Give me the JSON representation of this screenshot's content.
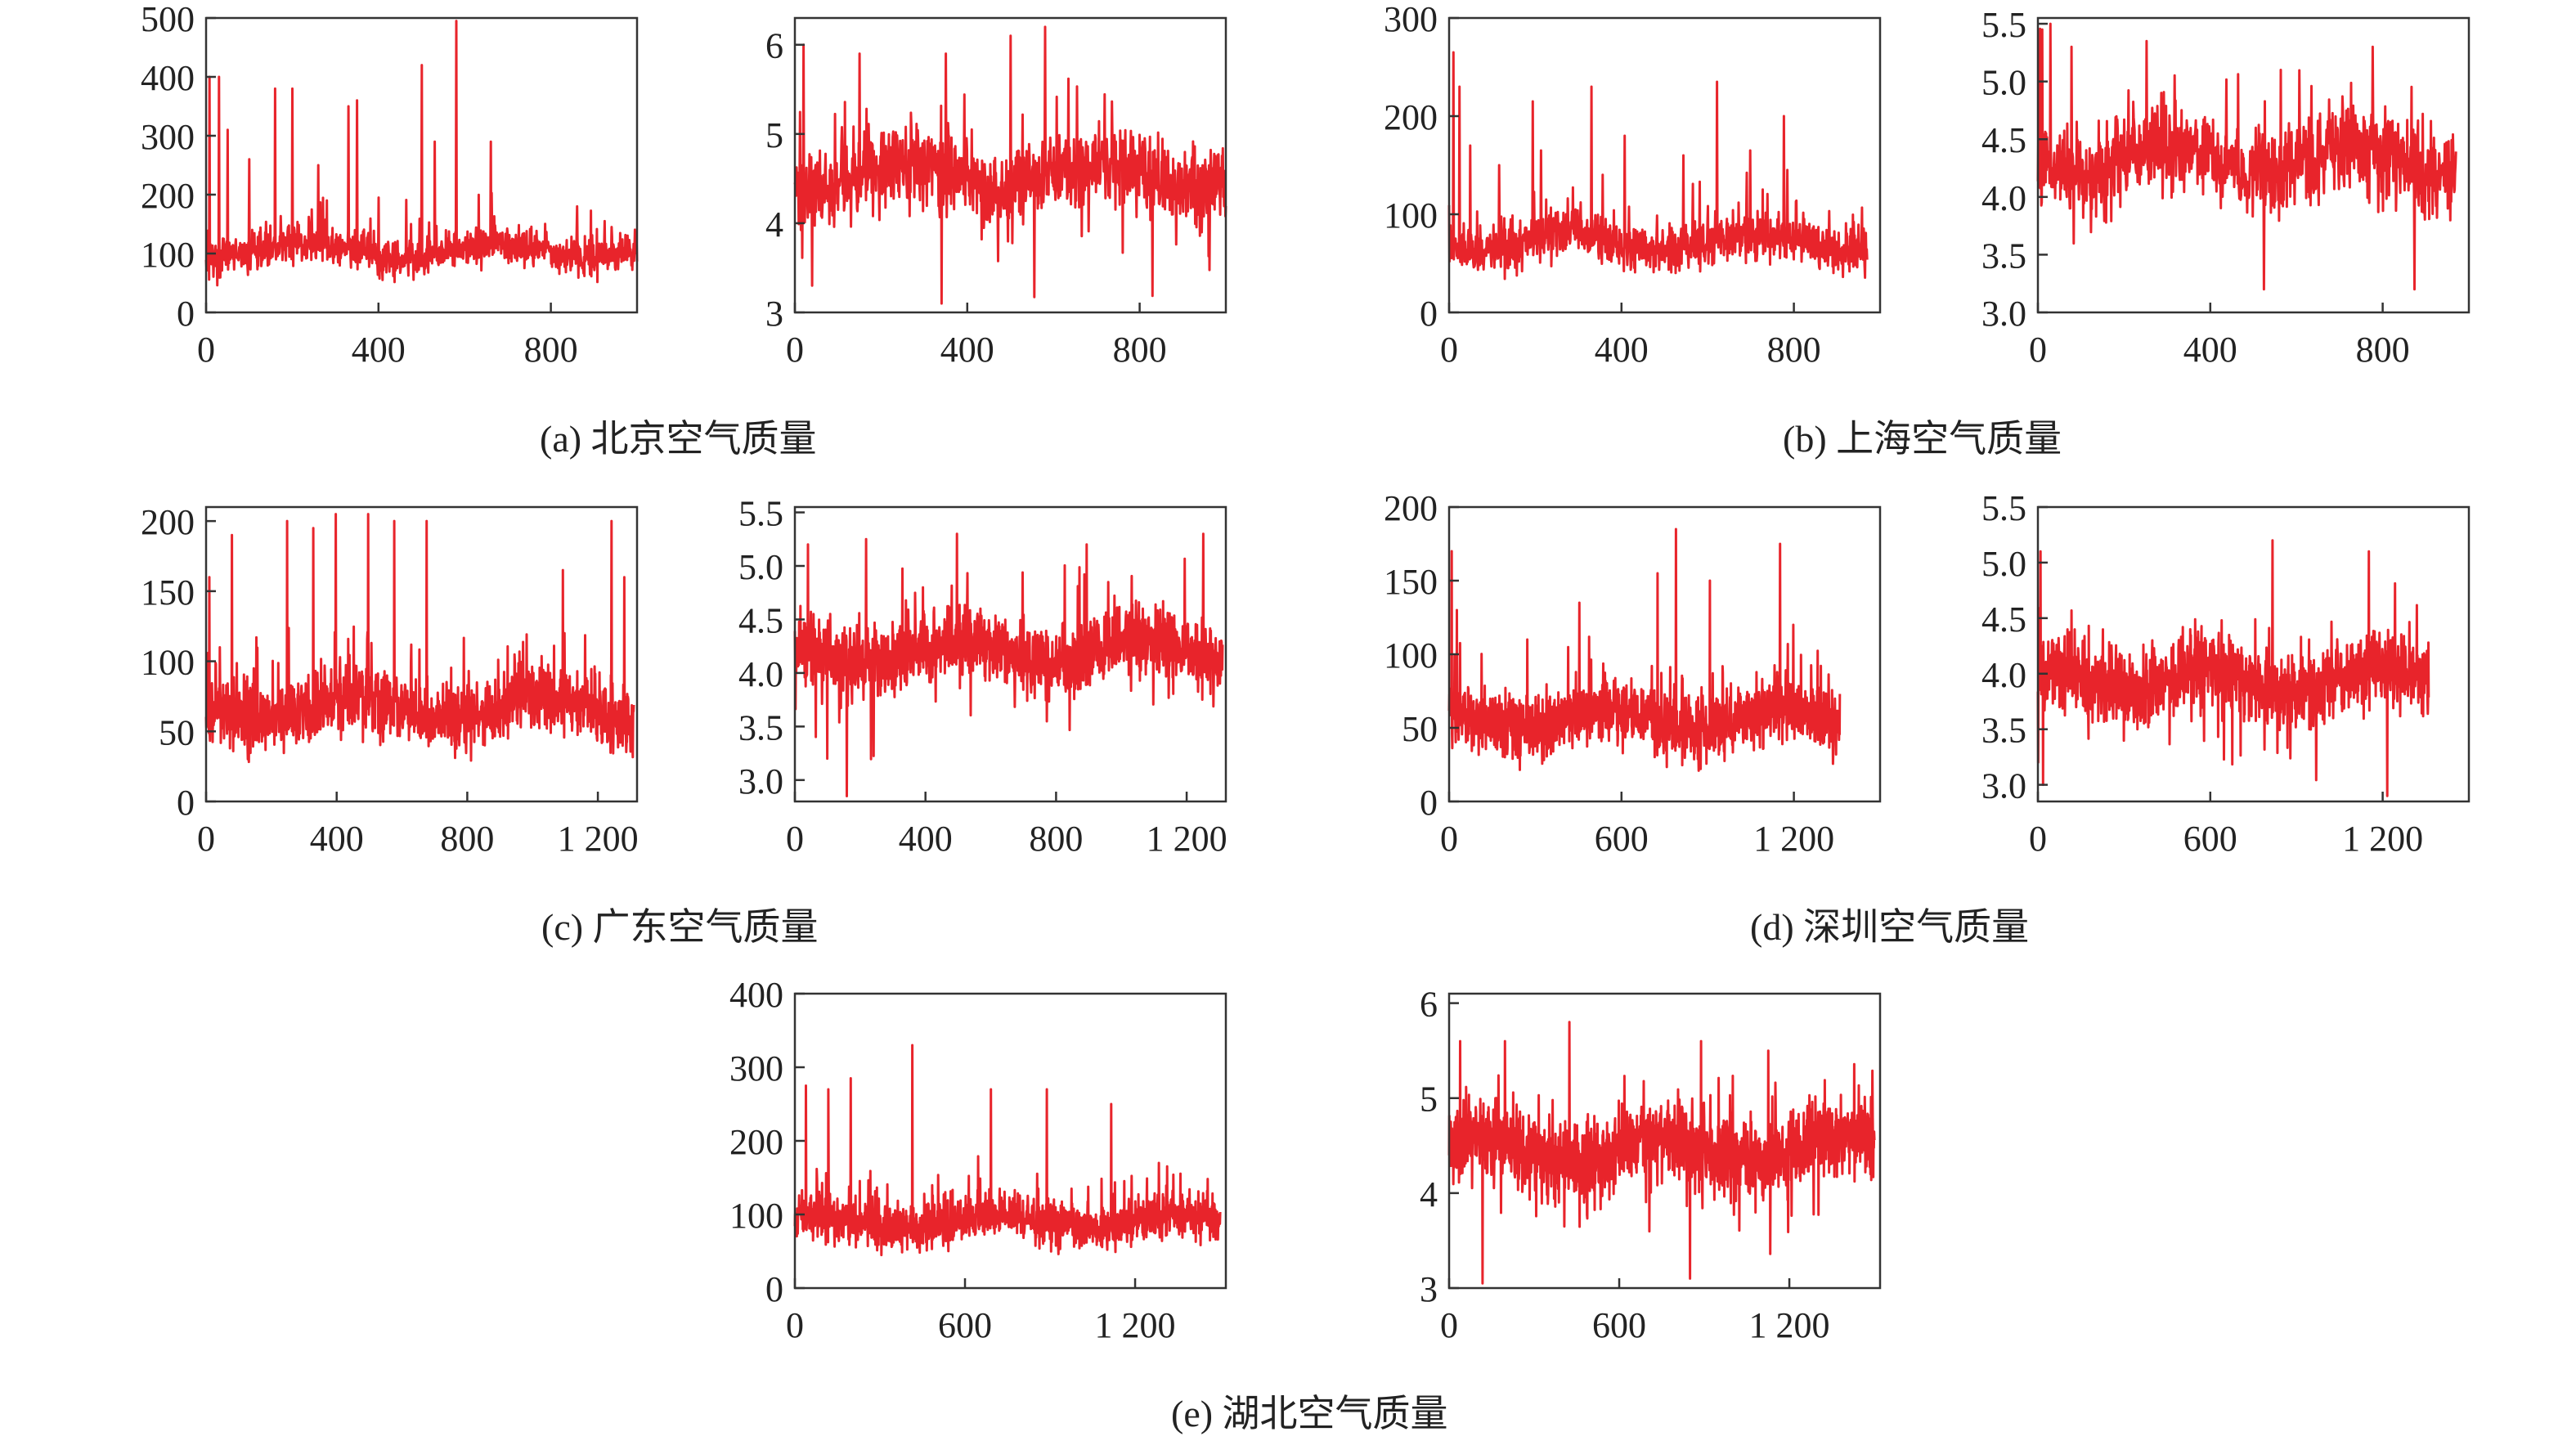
{
  "figure": {
    "line_color": "#e8242b",
    "captions": {
      "a": "(a) 北京空气质量",
      "b": "(b) 上海空气质量",
      "c": "(c) 广东空气质量",
      "d": "(d) 深圳空气质量",
      "e": "(e) 湖北空气质量"
    }
  },
  "chart_data": [
    {
      "id": "a-left",
      "panel": "a",
      "type": "line",
      "n": 1000,
      "xlim": [
        0,
        1000
      ],
      "xticks": [
        0,
        400,
        800
      ],
      "xtick_labels": [
        "0",
        "400",
        "800"
      ],
      "ylim": [
        0,
        500
      ],
      "yticks": [
        0,
        100,
        200,
        300,
        400,
        500
      ],
      "ytick_labels": [
        "0",
        "100",
        "200",
        "300",
        "400",
        "500"
      ],
      "baseline": 105,
      "noise": 32,
      "floor": 30,
      "peaks": [
        [
          8,
          400
        ],
        [
          30,
          400
        ],
        [
          50,
          310
        ],
        [
          100,
          260
        ],
        [
          160,
          380
        ],
        [
          200,
          380
        ],
        [
          260,
          250
        ],
        [
          330,
          350
        ],
        [
          350,
          360
        ],
        [
          400,
          195
        ],
        [
          500,
          420
        ],
        [
          530,
          290
        ],
        [
          580,
          495
        ],
        [
          660,
          290
        ],
        [
          860,
          180
        ],
        [
          940,
          145
        ]
      ]
    },
    {
      "id": "a-right",
      "panel": "a",
      "type": "line",
      "n": 1000,
      "xlim": [
        0,
        1000
      ],
      "xticks": [
        0,
        400,
        800
      ],
      "xtick_labels": [
        "0",
        "400",
        "800"
      ],
      "ylim": [
        3,
        6.3
      ],
      "yticks": [
        3,
        4,
        5,
        6
      ],
      "ytick_labels": [
        "3",
        "4",
        "5",
        "6"
      ],
      "baseline": 4.55,
      "noise": 0.45,
      "floor": 3.15,
      "peaks": [
        [
          20,
          6.0
        ],
        [
          150,
          5.9
        ],
        [
          350,
          5.9
        ],
        [
          500,
          6.1
        ],
        [
          580,
          6.2
        ],
        [
          340,
          3.1
        ],
        [
          40,
          3.3
        ]
      ]
    },
    {
      "id": "b-left",
      "panel": "b",
      "type": "line",
      "n": 970,
      "xlim": [
        0,
        1000
      ],
      "xticks": [
        0,
        400,
        800
      ],
      "xtick_labels": [
        "0",
        "400",
        "800"
      ],
      "ylim": [
        0,
        300
      ],
      "yticks": [
        0,
        100,
        200,
        300
      ],
      "ytick_labels": [
        "0",
        "100",
        "200",
        "300"
      ],
      "baseline": 72,
      "noise": 24,
      "floor": 22,
      "peaks": [
        [
          10,
          265
        ],
        [
          25,
          230
        ],
        [
          50,
          170
        ],
        [
          120,
          150
        ],
        [
          200,
          215
        ],
        [
          220,
          165
        ],
        [
          340,
          230
        ],
        [
          420,
          180
        ],
        [
          560,
          160
        ],
        [
          640,
          235
        ],
        [
          720,
          165
        ],
        [
          800,
          200
        ],
        [
          960,
          85
        ]
      ]
    },
    {
      "id": "b-right",
      "panel": "b",
      "type": "line",
      "n": 970,
      "xlim": [
        0,
        1000
      ],
      "xticks": [
        0,
        400,
        800
      ],
      "xtick_labels": [
        "0",
        "400",
        "800"
      ],
      "ylim": [
        3,
        5.55
      ],
      "yticks": [
        3,
        3.5,
        4,
        4.5,
        5,
        5.5
      ],
      "ytick_labels": [
        "3.0",
        "3.5",
        "4.0",
        "4.5",
        "5.0",
        "5.5"
      ],
      "baseline": 4.32,
      "noise": 0.35,
      "floor": 3.2,
      "peaks": [
        [
          10,
          5.45
        ],
        [
          30,
          5.5
        ],
        [
          80,
          5.3
        ],
        [
          260,
          5.35
        ],
        [
          800,
          5.3
        ],
        [
          580,
          5.1
        ],
        [
          540,
          3.2
        ],
        [
          900,
          3.2
        ]
      ]
    },
    {
      "id": "c-left",
      "panel": "c",
      "type": "line",
      "n": 1310,
      "xlim": [
        0,
        1320
      ],
      "xticks": [
        0,
        400,
        800,
        1200
      ],
      "xtick_labels": [
        "0",
        "400",
        "800",
        "1 200"
      ],
      "ylim": [
        0,
        210
      ],
      "yticks": [
        0,
        50,
        100,
        150,
        200
      ],
      "ytick_labels": [
        "0",
        "50",
        "100",
        "150",
        "200"
      ],
      "baseline": 65,
      "noise": 22,
      "floor": 18,
      "peaks": [
        [
          10,
          160
        ],
        [
          80,
          190
        ],
        [
          250,
          200
        ],
        [
          330,
          195
        ],
        [
          400,
          205
        ],
        [
          500,
          205
        ],
        [
          580,
          200
        ],
        [
          680,
          200
        ],
        [
          1100,
          165
        ],
        [
          1250,
          200
        ],
        [
          1290,
          160
        ]
      ]
    },
    {
      "id": "c-right",
      "panel": "c",
      "type": "line",
      "n": 1310,
      "xlim": [
        0,
        1320
      ],
      "xticks": [
        0,
        400,
        800,
        1200
      ],
      "xtick_labels": [
        "0",
        "400",
        "800",
        "1 200"
      ],
      "ylim": [
        2.8,
        5.55
      ],
      "yticks": [
        3,
        3.5,
        4,
        4.5,
        5,
        5.5
      ],
      "ytick_labels": [
        "3.0",
        "3.5",
        "4.0",
        "4.5",
        "5.0",
        "5.5"
      ],
      "baseline": 4.2,
      "noise": 0.33,
      "floor": 2.85,
      "peaks": [
        [
          40,
          5.2
        ],
        [
          220,
          5.25
        ],
        [
          500,
          5.3
        ],
        [
          900,
          5.2
        ],
        [
          1260,
          5.3
        ],
        [
          160,
          2.85
        ],
        [
          100,
          3.2
        ]
      ]
    },
    {
      "id": "d-left",
      "panel": "d",
      "type": "line",
      "n": 1360,
      "xlim": [
        0,
        1500
      ],
      "xticks": [
        0,
        600,
        1200
      ],
      "xtick_labels": [
        "0",
        "600",
        "1 200"
      ],
      "ylim": [
        0,
        200
      ],
      "yticks": [
        0,
        50,
        100,
        150,
        200
      ],
      "ytick_labels": [
        "0",
        "50",
        "100",
        "150",
        "200"
      ],
      "baseline": 55,
      "noise": 20,
      "floor": 18,
      "peaks": [
        [
          10,
          170
        ],
        [
          30,
          130
        ],
        [
          300,
          110
        ],
        [
          500,
          135
        ],
        [
          800,
          155
        ],
        [
          870,
          185
        ],
        [
          1000,
          150
        ],
        [
          1270,
          175
        ],
        [
          1320,
          120
        ]
      ]
    },
    {
      "id": "d-right",
      "panel": "d",
      "type": "line",
      "n": 1360,
      "xlim": [
        0,
        1500
      ],
      "xticks": [
        0,
        600,
        1200
      ],
      "xtick_labels": [
        "0",
        "600",
        "1 200"
      ],
      "ylim": [
        2.85,
        5.5
      ],
      "yticks": [
        3,
        3.5,
        4,
        4.5,
        5,
        5.5
      ],
      "ytick_labels": [
        "3.0",
        "3.5",
        "4.0",
        "4.5",
        "5.0",
        "5.5"
      ],
      "baseline": 3.95,
      "noise": 0.32,
      "floor": 2.9,
      "peaks": [
        [
          10,
          5.1
        ],
        [
          900,
          5.2
        ],
        [
          1270,
          5.1
        ],
        [
          1340,
          2.9
        ],
        [
          20,
          3.0
        ]
      ]
    },
    {
      "id": "e-left",
      "panel": "e",
      "type": "line",
      "n": 1500,
      "xlim": [
        0,
        1520
      ],
      "xticks": [
        0,
        600,
        1200
      ],
      "xtick_labels": [
        "0",
        "600",
        "1 200"
      ],
      "ylim": [
        0,
        400
      ],
      "yticks": [
        0,
        100,
        200,
        300,
        400
      ],
      "ytick_labels": [
        "0",
        "100",
        "200",
        "300",
        "400"
      ],
      "baseline": 90,
      "noise": 28,
      "floor": 25,
      "peaks": [
        [
          40,
          275
        ],
        [
          120,
          270
        ],
        [
          200,
          285
        ],
        [
          420,
          330
        ],
        [
          700,
          270
        ],
        [
          900,
          270
        ],
        [
          1130,
          250
        ],
        [
          1300,
          170
        ]
      ]
    },
    {
      "id": "e-right",
      "panel": "e",
      "type": "line",
      "n": 1500,
      "xlim": [
        0,
        1520
      ],
      "xticks": [
        0,
        600,
        1200
      ],
      "xtick_labels": [
        "0",
        "600",
        "1 200"
      ],
      "ylim": [
        3,
        6.1
      ],
      "yticks": [
        3,
        4,
        5,
        6
      ],
      "ytick_labels": [
        "3",
        "4",
        "5",
        "6"
      ],
      "baseline": 4.45,
      "noise": 0.4,
      "floor": 3.05,
      "peaks": [
        [
          40,
          5.6
        ],
        [
          200,
          5.6
        ],
        [
          430,
          5.8
        ],
        [
          900,
          5.6
        ],
        [
          1140,
          5.5
        ],
        [
          120,
          3.05
        ],
        [
          860,
          3.1
        ]
      ]
    }
  ]
}
